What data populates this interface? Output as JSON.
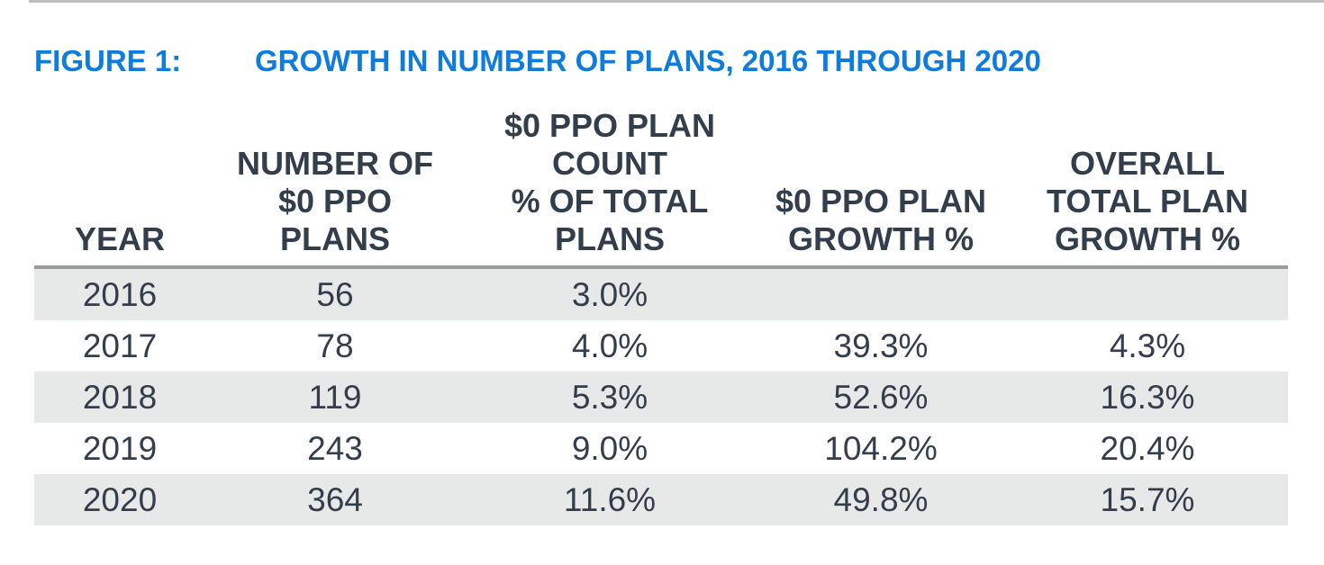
{
  "figure": {
    "label": "FIGURE 1:",
    "title": "GROWTH IN NUMBER OF PLANS, 2016 THROUGH 2020"
  },
  "table": {
    "headers": [
      {
        "lines": [
          "YEAR"
        ]
      },
      {
        "lines": [
          "NUMBER OF",
          "$0 PPO",
          "PLANS"
        ]
      },
      {
        "lines": [
          "$0 PPO PLAN",
          "COUNT",
          "% OF TOTAL",
          "PLANS"
        ]
      },
      {
        "lines": [
          "$0 PPO PLAN",
          "GROWTH %"
        ]
      },
      {
        "lines": [
          "OVERALL",
          "TOTAL PLAN",
          "GROWTH %"
        ]
      }
    ],
    "rows": [
      [
        "2016",
        "56",
        "3.0%",
        "",
        ""
      ],
      [
        "2017",
        "78",
        "4.0%",
        "39.3%",
        "4.3%"
      ],
      [
        "2018",
        "119",
        "5.3%",
        "52.6%",
        "16.3%"
      ],
      [
        "2019",
        "243",
        "9.0%",
        "104.2%",
        "20.4%"
      ],
      [
        "2020",
        "364",
        "11.6%",
        "49.8%",
        "15.7%"
      ]
    ]
  },
  "chart_data": {
    "type": "table",
    "title": "FIGURE 1: GROWTH IN NUMBER OF PLANS, 2016 THROUGH 2020",
    "columns": [
      "YEAR",
      "NUMBER OF $0 PPO PLANS",
      "$0 PPO PLAN COUNT % OF TOTAL PLANS",
      "$0 PPO PLAN GROWTH %",
      "OVERALL TOTAL PLAN GROWTH %"
    ],
    "rows": [
      {
        "year": 2016,
        "num_zero_ppo_plans": 56,
        "pct_of_total_plans": "3.0%",
        "zero_ppo_plan_growth": null,
        "overall_total_plan_growth": null
      },
      {
        "year": 2017,
        "num_zero_ppo_plans": 78,
        "pct_of_total_plans": "4.0%",
        "zero_ppo_plan_growth": "39.3%",
        "overall_total_plan_growth": "4.3%"
      },
      {
        "year": 2018,
        "num_zero_ppo_plans": 119,
        "pct_of_total_plans": "5.3%",
        "zero_ppo_plan_growth": "52.6%",
        "overall_total_plan_growth": "16.3%"
      },
      {
        "year": 2019,
        "num_zero_ppo_plans": 243,
        "pct_of_total_plans": "9.0%",
        "zero_ppo_plan_growth": "104.2%",
        "overall_total_plan_growth": "20.4%"
      },
      {
        "year": 2020,
        "num_zero_ppo_plans": 364,
        "pct_of_total_plans": "11.6%",
        "zero_ppo_plan_growth": "49.8%",
        "overall_total_plan_growth": "15.7%"
      }
    ],
    "layout_hints": {
      "striped_rows": "odd rows shaded light gray",
      "header_alignment": "bottom",
      "cell_alignment": "center"
    }
  },
  "colors": {
    "title_blue": "#0E7CDC",
    "text_dark": "#333E4D",
    "row_shade": "#E7E8E8",
    "header_rule": "#9A9A9A",
    "top_rule": "#BEBEBE"
  }
}
